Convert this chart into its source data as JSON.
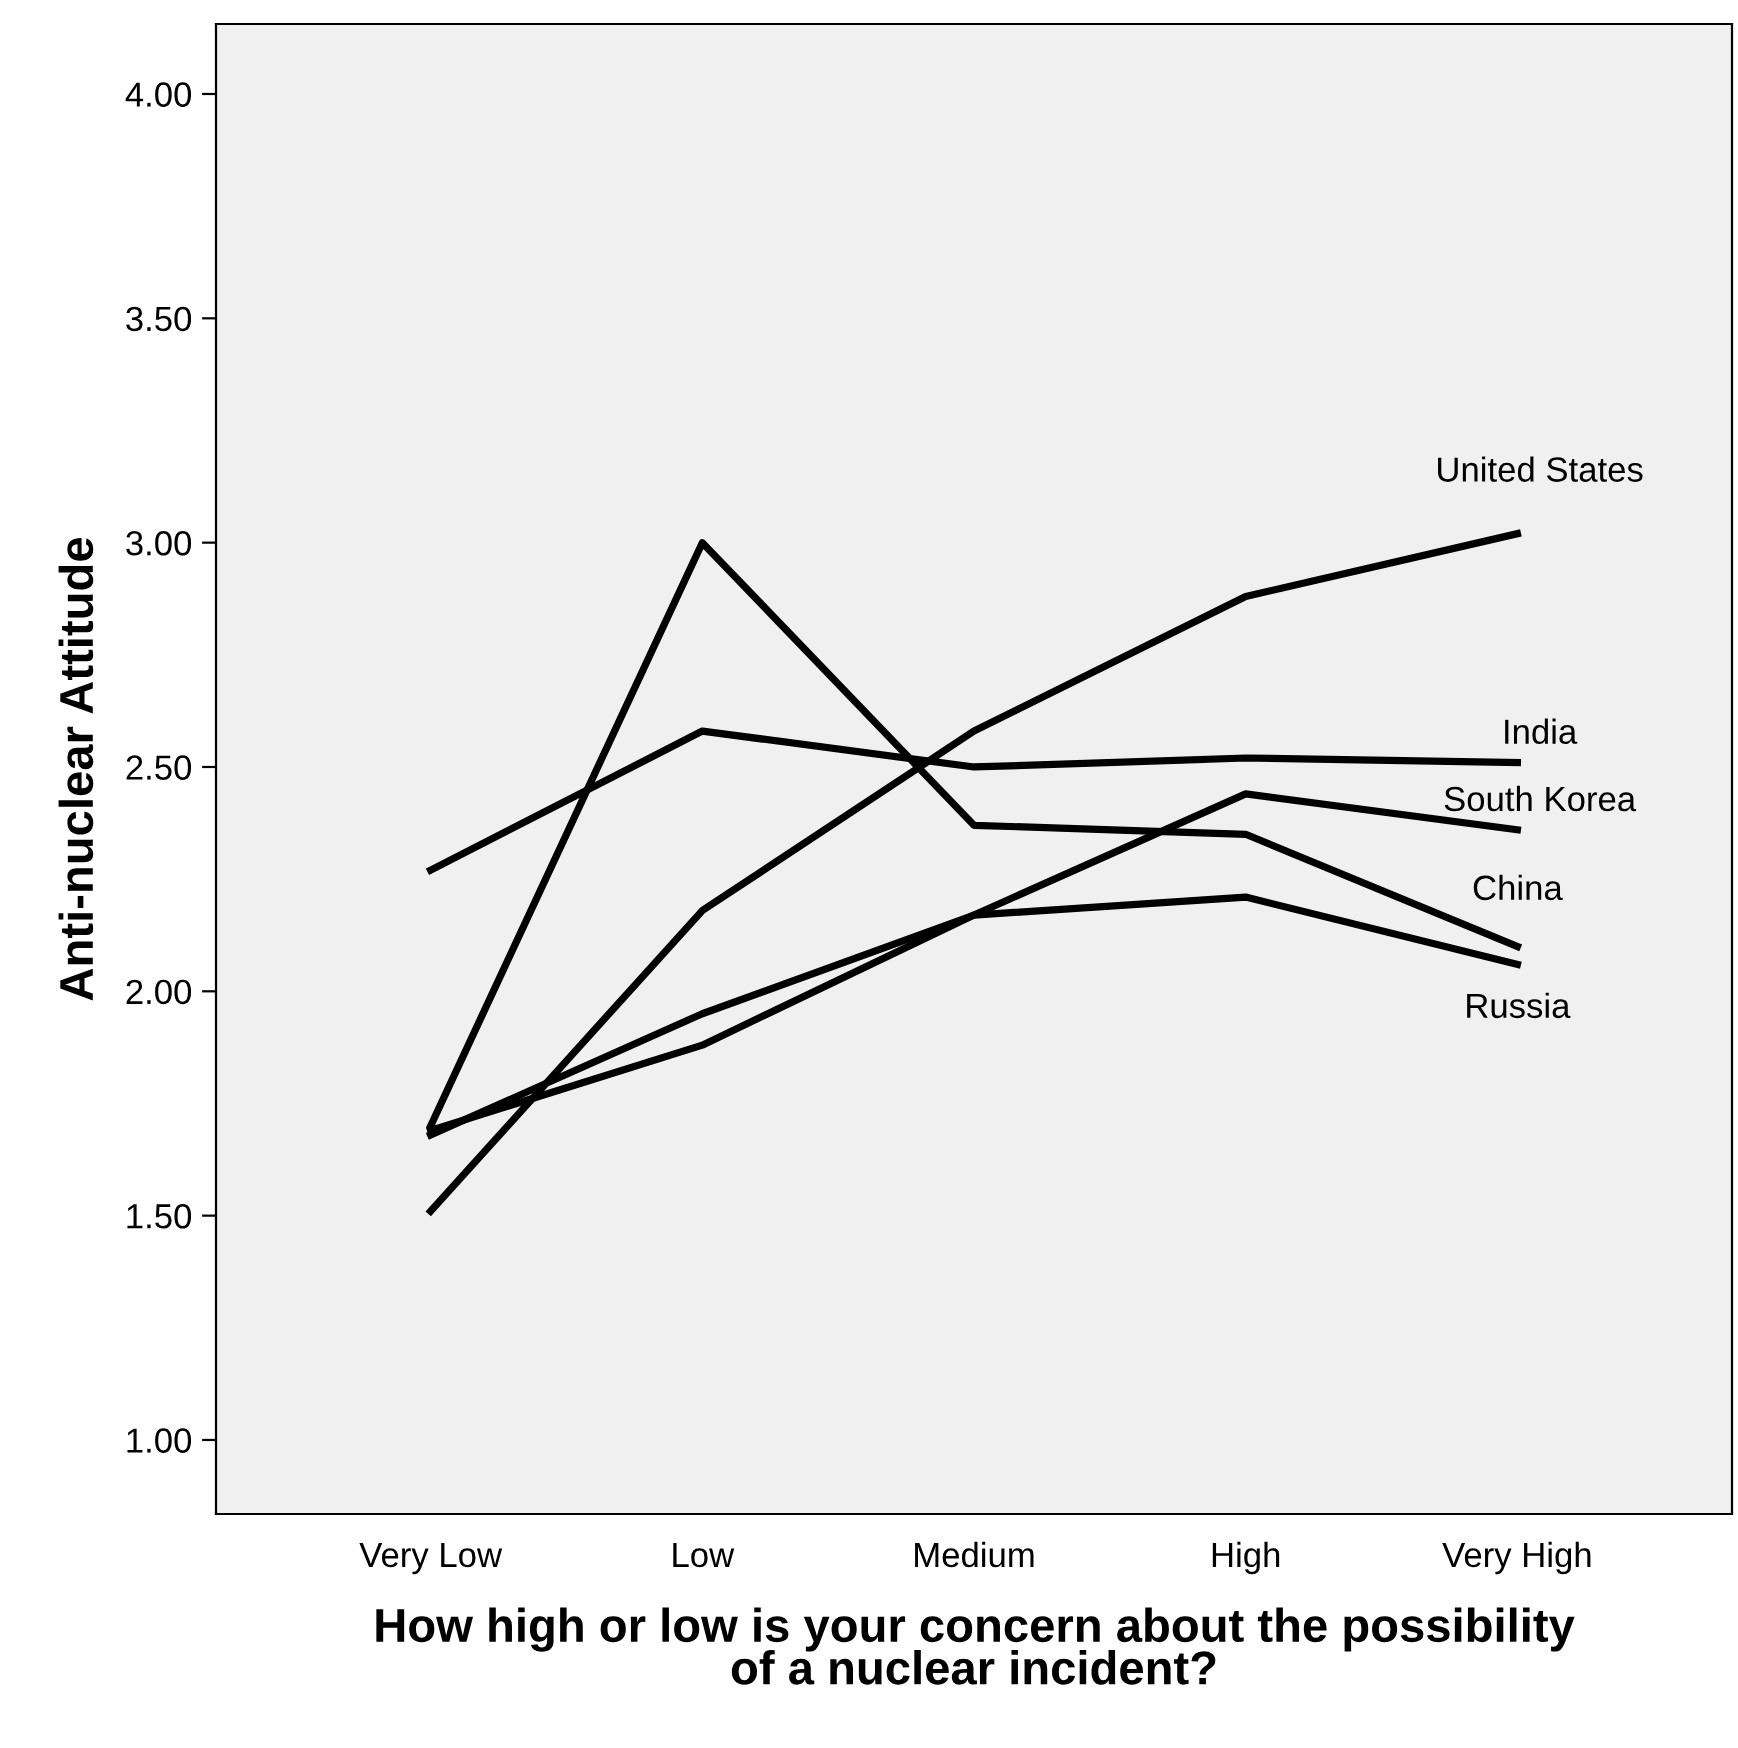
{
  "chart_data": {
    "type": "line",
    "xlabel": "How high or low is your concern about the possibility\nof a nuclear incident?",
    "ylabel": "Anti-nuclear Attitude",
    "categories": [
      "Very Low",
      "Low",
      "Medium",
      "High",
      "Very High"
    ],
    "series": [
      {
        "name": "United States",
        "color": "#000000",
        "values": [
          1.51,
          2.18,
          2.58,
          2.88,
          3.02
        ]
      },
      {
        "name": "India",
        "color": "#000000",
        "values": [
          2.27,
          2.58,
          2.5,
          2.52,
          2.51
        ]
      },
      {
        "name": "South Korea",
        "color": "#000000",
        "values": [
          1.69,
          1.88,
          2.17,
          2.44,
          2.36
        ]
      },
      {
        "name": "China",
        "color": "#000000",
        "values": [
          1.7,
          3.0,
          2.37,
          2.35,
          2.1
        ]
      },
      {
        "name": "Russia",
        "color": "#000000",
        "values": [
          1.68,
          1.95,
          2.17,
          2.21,
          2.06
        ]
      }
    ],
    "ylim": [
      0.835,
      4.156
    ],
    "yticks": [
      {
        "value": 1,
        "label": "1.00"
      },
      {
        "value": 1.5,
        "label": "1.50"
      },
      {
        "value": 2,
        "label": "2.00"
      },
      {
        "value": 2.5,
        "label": "2.50"
      },
      {
        "value": 3,
        "label": "3.00"
      },
      {
        "value": 3.5,
        "label": "3.50"
      },
      {
        "value": 4,
        "label": "4.00"
      }
    ],
    "grid": false,
    "legend": false,
    "marker": "none",
    "line_style": "solid"
  }
}
